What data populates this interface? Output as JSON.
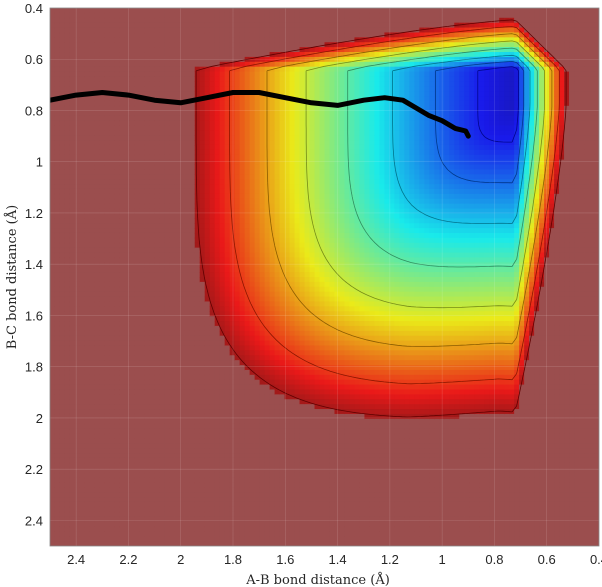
{
  "chart_data": {
    "type": "contour",
    "xlabel": "A-B bond distance (Å)",
    "ylabel": "B-C bond distance (Å)",
    "xlim": [
      2.5,
      0.4
    ],
    "ylim": [
      0.4,
      2.5
    ],
    "x_reversed": true,
    "y_reversed": true,
    "x_ticks": [
      2.4,
      2.2,
      2.0,
      1.8,
      1.6,
      1.4,
      1.2,
      1.0,
      0.8,
      0.6,
      0.4
    ],
    "x_tick_labels": [
      "2.4",
      "2.2",
      "2",
      "1.8",
      "1.6",
      "1.4",
      "1.2",
      "1",
      "0.8",
      "0.6",
      "0.4"
    ],
    "y_ticks": [
      0.4,
      0.6,
      0.8,
      1.0,
      1.2,
      1.4,
      1.6,
      1.8,
      2.0,
      2.2,
      2.4
    ],
    "y_tick_labels": [
      "0.4",
      "0.6",
      "0.8",
      "1",
      "1.2",
      "1.4",
      "1.6",
      "1.8",
      "2",
      "2.2",
      "2.4"
    ],
    "colormap": "jet",
    "grid": true,
    "trajectory": {
      "color": "#000000",
      "points": [
        [
          2.5,
          0.76
        ],
        [
          2.4,
          0.74
        ],
        [
          2.3,
          0.73
        ],
        [
          2.2,
          0.74
        ],
        [
          2.1,
          0.76
        ],
        [
          2.0,
          0.77
        ],
        [
          1.9,
          0.75
        ],
        [
          1.8,
          0.73
        ],
        [
          1.7,
          0.73
        ],
        [
          1.6,
          0.75
        ],
        [
          1.5,
          0.77
        ],
        [
          1.4,
          0.78
        ],
        [
          1.3,
          0.76
        ],
        [
          1.22,
          0.75
        ],
        [
          1.15,
          0.76
        ],
        [
          1.1,
          0.79
        ],
        [
          1.05,
          0.82
        ],
        [
          1.0,
          0.84
        ],
        [
          0.95,
          0.87
        ],
        [
          0.91,
          0.88
        ],
        [
          0.9,
          0.9
        ]
      ]
    }
  }
}
